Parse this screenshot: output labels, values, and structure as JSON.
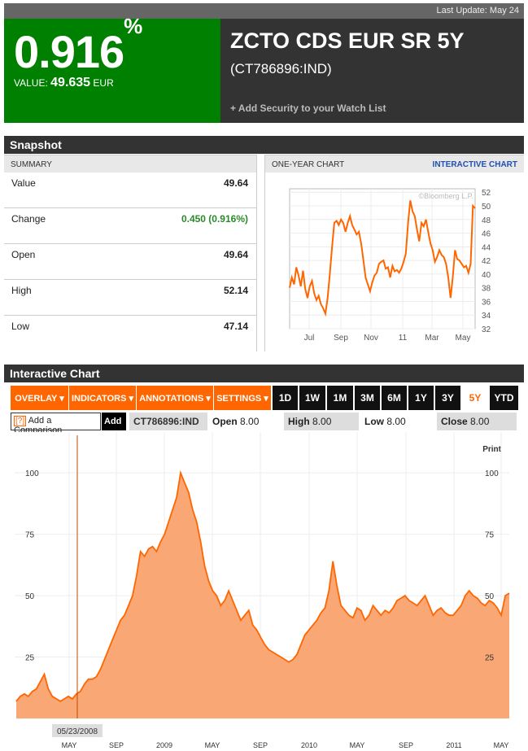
{
  "top": {
    "last_update": "Last Update: May 24"
  },
  "hero": {
    "pct_change": "0.916",
    "pct_sign": "%",
    "value_label": "VALUE:",
    "value": "49.635",
    "currency": "EUR",
    "title": "ZCTO CDS EUR SR 5Y",
    "ticker": "(CT786896:IND)",
    "watch_link": "+ Add Security to your Watch List"
  },
  "snapshot": {
    "title": "Snapshot",
    "summary_header": "SUMMARY",
    "rows": [
      {
        "label": "Value",
        "value": "49.64"
      },
      {
        "label": "Change",
        "value": "0.450 (0.916%)"
      },
      {
        "label": "Open",
        "value": "49.64"
      },
      {
        "label": "High",
        "value": "52.14"
      },
      {
        "label": "Low",
        "value": "47.14"
      }
    ],
    "chart_header": "ONE-YEAR CHART",
    "interactive_link": "INTERACTIVE CHART",
    "colors": {
      "change_positive": "#2a8a2a",
      "link": "#1f4fb4"
    }
  },
  "interactive": {
    "title": "Interactive Chart",
    "menus": [
      "OVERLAY ▾",
      "INDICATORS ▾",
      "ANNOTATIONS ▾",
      "SETTINGS ▾"
    ],
    "ranges": [
      "1D",
      "1W",
      "1M",
      "3M",
      "6M",
      "1Y",
      "3Y",
      "5Y",
      "YTD"
    ],
    "active_range": "5Y",
    "compare_help": "[?]",
    "compare_label": "Add a Comparison",
    "add_button": "Add",
    "ticker": "CT786896:IND",
    "open_label": "Open",
    "open_value": "8.00",
    "high_label": "High",
    "high_value": "8.00",
    "low_label": "Low",
    "low_value": "8.00",
    "close_label": "Close",
    "close_value": "8.00",
    "print_label": "Print",
    "marker_date": "05/23/2008",
    "colors": {
      "accent": "#ff6600",
      "area_fill": "#f9a774",
      "line": "#ff6600"
    }
  },
  "chart_data": [
    {
      "type": "line",
      "title": "",
      "credit": "©Bloomberg L.P.",
      "x_ticks": [
        "Jul",
        "Sep",
        "Nov",
        "11",
        "Mar",
        "May"
      ],
      "y_ticks": [
        32,
        34,
        36,
        38,
        40,
        42,
        44,
        46,
        48,
        50,
        52
      ],
      "ylim": [
        32,
        52.5
      ],
      "grid": true,
      "series": [
        {
          "values": [
            38,
            39.5,
            38.5,
            41,
            39.8,
            38.2,
            40.5,
            37.8,
            36.5,
            38.2,
            39,
            37.2,
            36.2,
            36.8,
            35.6,
            35,
            34.2,
            36.5,
            40,
            44,
            47.5,
            47.8,
            47.2,
            48,
            47.5,
            46.2,
            47.5,
            48.5,
            47.2,
            46.5,
            45.8,
            46.2,
            44.5,
            42,
            39.5,
            38.5,
            37.5,
            38.8,
            39.8,
            40.2,
            41.5,
            41.8,
            42,
            40.8,
            41,
            39.5,
            41.2,
            40.4,
            40.6,
            40.2,
            40.8,
            41.8,
            43,
            47.5,
            50.8,
            49.2,
            48.5,
            46.5,
            44.8,
            47.5,
            47,
            48,
            46.2,
            44.5,
            43.5,
            41.8,
            42.5,
            43.5,
            42.8,
            42.5,
            41.5,
            39.5,
            36.5,
            39.5,
            43.5,
            42.2,
            42,
            41.5,
            41,
            41.2,
            40.2,
            41.5,
            50,
            49.64
          ]
        }
      ]
    },
    {
      "type": "area",
      "x_ticks": [
        "MAY",
        "SEP",
        "2009",
        "MAY",
        "SEP",
        "2010",
        "MAY",
        "SEP",
        "2011",
        "MAY"
      ],
      "y_ticks": [
        25,
        50,
        75,
        100
      ],
      "ylim": [
        0,
        110
      ],
      "grid": true,
      "series": [
        {
          "values": [
            7,
            9,
            10,
            9,
            11,
            12,
            15,
            18,
            12,
            9,
            8,
            7,
            8,
            9,
            8,
            10,
            11,
            14,
            16,
            16,
            17,
            20,
            24,
            28,
            32,
            36,
            40,
            42,
            46,
            50,
            58,
            68,
            66,
            69,
            70,
            68,
            72,
            75,
            80,
            85,
            90,
            100,
            96,
            92,
            85,
            80,
            72,
            62,
            56,
            52,
            50,
            46,
            48,
            52,
            48,
            44,
            40,
            42,
            44,
            38,
            36,
            33,
            30,
            28,
            27,
            26,
            25,
            24,
            23,
            24,
            26,
            30,
            34,
            36,
            38,
            40,
            43,
            45,
            52,
            64,
            54,
            46,
            44,
            42,
            41,
            45,
            44,
            40,
            42,
            46,
            44,
            42,
            44,
            43,
            45,
            48,
            49,
            50,
            48,
            47,
            46,
            48,
            50,
            46,
            42,
            44,
            45,
            43,
            42,
            42,
            44,
            46,
            50,
            52,
            50,
            49,
            47,
            46,
            48,
            47,
            45,
            42,
            50,
            51
          ]
        }
      ]
    }
  ]
}
